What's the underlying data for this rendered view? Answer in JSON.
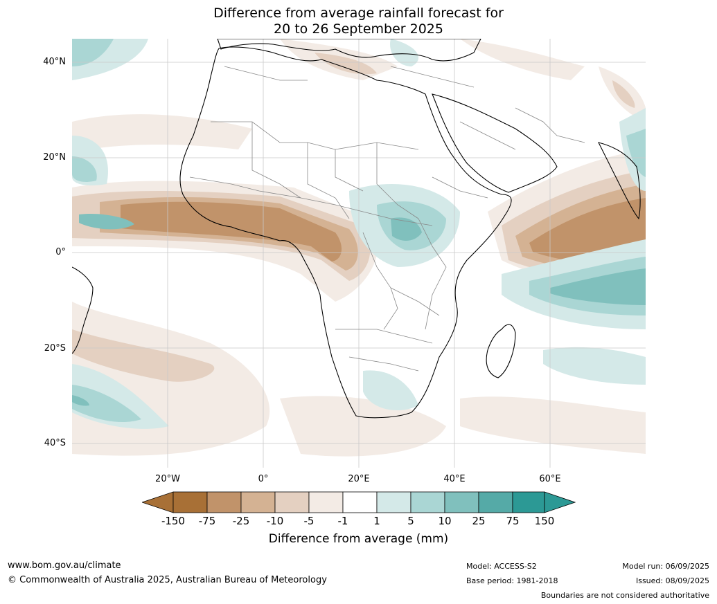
{
  "title_line1": "Difference from average rainfall forecast for",
  "title_line2": "20 to 26 September 2025",
  "lat_labels": [
    "40°N",
    "20°N",
    "0°",
    "20°S",
    "40°S"
  ],
  "lon_labels": [
    "20°W",
    "0°",
    "20°E",
    "40°E",
    "60°E"
  ],
  "colorbar": {
    "ticks": [
      "-150",
      "-75",
      "-25",
      "-10",
      "-5",
      "-1",
      "1",
      "5",
      "10",
      "25",
      "75",
      "150"
    ],
    "colors": [
      "#a87036",
      "#a87036",
      "#c1936a",
      "#d4b293",
      "#e4d0c1",
      "#f3ebe5",
      "#ffffff",
      "#d4e9e8",
      "#aad6d4",
      "#80c0bd",
      "#55aaa7",
      "#2c9995",
      "#2c9995"
    ],
    "title": "Difference from average (mm)"
  },
  "footer": {
    "website": "www.bom.gov.au/climate",
    "copyright": "© Commonwealth of Australia 2025, Australian Bureau of Meteorology",
    "model": "Model: ACCESS-S2",
    "base_period": "Base period: 1981-2018",
    "model_run": "Model run: 06/09/2025",
    "issued": "Issued: 08/09/2025",
    "disclaimer": "Boundaries are not considered authoritative"
  }
}
